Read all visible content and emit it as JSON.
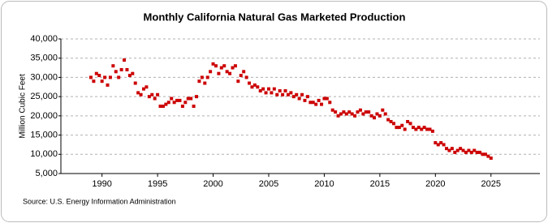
{
  "chart_data": {
    "type": "scatter",
    "title": "Monthly California Natural Gas Marketed Production",
    "y_label": "Million Cubic Feet",
    "source": "Source: U.S. Energy Information Administration",
    "color": "#cc0000",
    "grid": true,
    "xlim": [
      1986.3,
      2029.4
    ],
    "xticks": [
      1990,
      1995,
      2000,
      2005,
      2010,
      2015,
      2020,
      2025
    ],
    "ylim": [
      5000,
      40000
    ],
    "yticks": [
      {
        "value": 5000,
        "label": "5,000"
      },
      {
        "value": 10000,
        "label": "10,000"
      },
      {
        "value": 15000,
        "label": "15,000"
      },
      {
        "value": 20000,
        "label": "20,000"
      },
      {
        "value": 25000,
        "label": "25,000"
      },
      {
        "value": 30000,
        "label": "30,000"
      },
      {
        "value": 35000,
        "label": "35,000"
      },
      {
        "value": 40000,
        "label": "40,000"
      }
    ],
    "x": [
      1989,
      1989.25,
      1989.5,
      1989.75,
      1990,
      1990.25,
      1990.5,
      1990.75,
      1991,
      1991.25,
      1991.5,
      1991.75,
      1992,
      1992.25,
      1992.5,
      1992.75,
      1993,
      1993.25,
      1993.5,
      1993.75,
      1994,
      1994.25,
      1994.5,
      1994.75,
      1995,
      1995.25,
      1995.5,
      1995.75,
      1996,
      1996.25,
      1996.5,
      1996.75,
      1997,
      1997.25,
      1997.5,
      1997.75,
      1998,
      1998.25,
      1998.5,
      1998.75,
      1999,
      1999.25,
      1999.5,
      1999.75,
      2000,
      2000.25,
      2000.5,
      2000.75,
      2001,
      2001.25,
      2001.5,
      2001.75,
      2002,
      2002.25,
      2002.5,
      2002.75,
      2003,
      2003.25,
      2003.5,
      2003.75,
      2004,
      2004.25,
      2004.5,
      2004.75,
      2005,
      2005.25,
      2005.5,
      2005.75,
      2006,
      2006.25,
      2006.5,
      2006.75,
      2007,
      2007.25,
      2007.5,
      2007.75,
      2008,
      2008.25,
      2008.5,
      2008.75,
      2009,
      2009.25,
      2009.5,
      2009.75,
      2010,
      2010.25,
      2010.5,
      2010.75,
      2011,
      2011.25,
      2011.5,
      2011.75,
      2012,
      2012.25,
      2012.5,
      2012.75,
      2013,
      2013.25,
      2013.5,
      2013.75,
      2014,
      2014.25,
      2014.5,
      2014.75,
      2015,
      2015.25,
      2015.5,
      2015.75,
      2016,
      2016.25,
      2016.5,
      2016.75,
      2017,
      2017.25,
      2017.5,
      2017.75,
      2018,
      2018.25,
      2018.5,
      2018.75,
      2019,
      2019.25,
      2019.5,
      2019.75,
      2020,
      2020.25,
      2020.5,
      2020.75,
      2021,
      2021.25,
      2021.5,
      2021.75,
      2022,
      2022.25,
      2022.5,
      2022.75,
      2023,
      2023.25,
      2023.5,
      2023.75,
      2024,
      2024.25,
      2024.5,
      2024.75,
      2025
    ],
    "values": [
      30000,
      29000,
      31000,
      30500,
      29000,
      30000,
      28000,
      30000,
      33000,
      31500,
      30000,
      32000,
      34500,
      32000,
      30500,
      31000,
      28500,
      26000,
      25500,
      27000,
      27500,
      25000,
      25500,
      24500,
      25500,
      22500,
      22500,
      23000,
      23500,
      24500,
      23500,
      24000,
      24000,
      22500,
      23500,
      24500,
      24500,
      22500,
      25000,
      29000,
      30000,
      28500,
      30000,
      31500,
      33500,
      33000,
      31000,
      32500,
      33000,
      31500,
      31000,
      32500,
      33000,
      29000,
      30500,
      31500,
      30000,
      28500,
      27500,
      28000,
      27500,
      26500,
      27000,
      26000,
      27000,
      26000,
      27000,
      25500,
      26500,
      25500,
      26500,
      25500,
      26000,
      25000,
      25500,
      24500,
      25500,
      24000,
      25000,
      23500,
      23500,
      23000,
      24000,
      23000,
      24500,
      24500,
      23500,
      21500,
      21000,
      20000,
      20500,
      21000,
      20500,
      21000,
      20500,
      20000,
      21000,
      21500,
      20500,
      21000,
      21000,
      20000,
      19500,
      20500,
      20000,
      21500,
      20500,
      19000,
      18500,
      18000,
      17000,
      17000,
      17500,
      16500,
      18500,
      18000,
      17000,
      16500,
      17000,
      16500,
      17000,
      16500,
      16500,
      16000,
      13000,
      12500,
      13000,
      12500,
      11500,
      11000,
      11500,
      10500,
      11000,
      11500,
      11000,
      10500,
      11000,
      10500,
      11000,
      10500,
      10500,
      10000,
      10000,
      9500,
      9000
    ]
  }
}
